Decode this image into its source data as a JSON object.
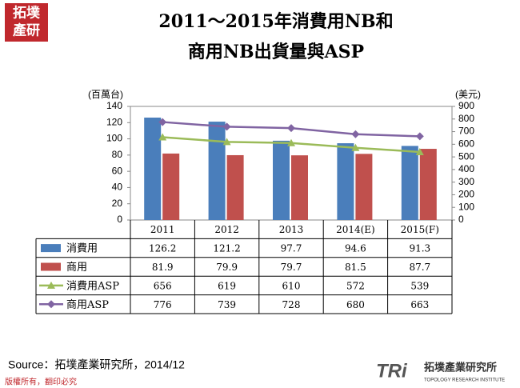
{
  "logo": {
    "line1": "拓墣",
    "line2": "產研"
  },
  "chart_data": {
    "type": "bar",
    "title": [
      "2011～2015年消費用NB和",
      "商用NB出貨量與ASP"
    ],
    "y_label": "(百萬台)",
    "y2_label": "(美元)",
    "categories": [
      "2011",
      "2012",
      "2013",
      "2014(E)",
      "2015(F)"
    ],
    "series": [
      {
        "name": "消費用",
        "type": "bar",
        "color": "#4a7ebb",
        "values": [
          126.2,
          121.2,
          97.7,
          94.6,
          91.3
        ]
      },
      {
        "name": "商用",
        "type": "bar",
        "color": "#c0504d",
        "values": [
          81.9,
          79.9,
          79.7,
          81.5,
          87.7
        ]
      },
      {
        "name": "消費用ASP",
        "type": "line",
        "marker": "triangle",
        "axis": "y2",
        "color": "#9bbb59",
        "values": [
          656,
          619,
          610,
          572,
          539
        ]
      },
      {
        "name": "商用ASP",
        "type": "line",
        "marker": "diamond",
        "axis": "y2",
        "color": "#8064a2",
        "values": [
          776,
          739,
          728,
          680,
          663
        ]
      }
    ],
    "ylim": [
      0,
      140
    ],
    "yticks": [
      0,
      20,
      40,
      60,
      80,
      100,
      120,
      140
    ],
    "y2lim": [
      0,
      900
    ],
    "y2ticks": [
      0,
      100,
      200,
      300,
      400,
      500,
      600,
      700,
      800,
      900
    ],
    "data_table": true
  },
  "source": "Source：拓墣產業研究所，2014/12",
  "copyright": "版權所有，翻印必究",
  "footer_logo": {
    "mark": "TRi",
    "name": "拓墣產業研究所",
    "english": "TOPOLOGY RESEARCH INSTITUTE"
  }
}
